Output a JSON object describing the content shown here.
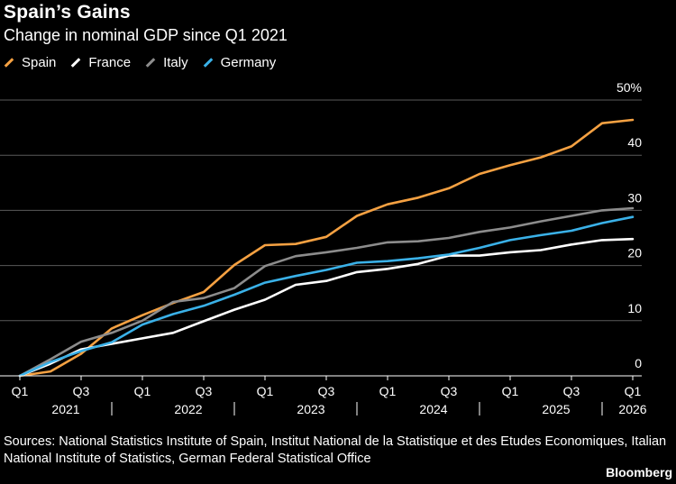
{
  "header": {
    "title": "Spain’s Gains",
    "subtitle": "Change in nominal GDP since Q1 2021"
  },
  "chart_data": {
    "type": "line",
    "title": "Spain’s Gains",
    "subtitle": "Change in nominal GDP since Q1 2021",
    "x": [
      "Q1 2021",
      "Q2 2021",
      "Q3 2021",
      "Q4 2021",
      "Q1 2022",
      "Q2 2022",
      "Q3 2022",
      "Q4 2022",
      "Q1 2023",
      "Q2 2023",
      "Q3 2023",
      "Q4 2023",
      "Q1 2024",
      "Q2 2024",
      "Q3 2024",
      "Q4 2024",
      "Q1 2025",
      "Q2 2025",
      "Q3 2025",
      "Q4 2025",
      "Q1 2026"
    ],
    "x_tick_labels": [
      "Q1",
      "Q3",
      "Q1",
      "Q3",
      "Q1",
      "Q3",
      "Q1",
      "Q3",
      "Q1",
      "Q3",
      "Q1"
    ],
    "x_tick_indices": [
      0,
      2,
      4,
      6,
      8,
      10,
      12,
      14,
      16,
      18,
      20
    ],
    "year_labels": [
      {
        "label": "2021",
        "index": 1.5
      },
      {
        "label": "2022",
        "index": 5.5
      },
      {
        "label": "2023",
        "index": 9.5
      },
      {
        "label": "2024",
        "index": 13.5
      },
      {
        "label": "2025",
        "index": 17.5
      },
      {
        "label": "2026",
        "index": 20
      }
    ],
    "year_separators": [
      3,
      7,
      11,
      15,
      19
    ],
    "y_ticks": [
      0,
      10,
      20,
      30,
      40,
      50
    ],
    "y_tick_labels": [
      "0",
      "10",
      "20",
      "30",
      "40",
      "50%"
    ],
    "ylim": [
      0,
      50
    ],
    "series": [
      {
        "name": "Spain",
        "color": "#f5a142",
        "values": [
          0,
          0.8,
          4,
          8.6,
          11,
          13.2,
          15.2,
          20.1,
          23.7,
          23.9,
          25.2,
          29,
          31.1,
          32.3,
          34,
          36.6,
          38.2,
          39.6,
          41.6,
          45.8,
          46.4
        ]
      },
      {
        "name": "France",
        "color": "#ffffff",
        "values": [
          0,
          2.2,
          4.8,
          5.8,
          6.8,
          7.8,
          9.9,
          12,
          13.8,
          16.5,
          17.2,
          18.8,
          19.4,
          20.3,
          21.8,
          21.8,
          22.4,
          22.8,
          23.8,
          24.6,
          24.8
        ]
      },
      {
        "name": "Italy",
        "color": "#8c8c8c",
        "values": [
          0,
          3,
          6.2,
          7.8,
          10,
          13.4,
          14.1,
          15.9,
          19.9,
          21.7,
          22.4,
          23.2,
          24.2,
          24.4,
          25,
          26.1,
          26.9,
          28,
          29,
          30,
          30.4
        ]
      },
      {
        "name": "Germany",
        "color": "#3ab1e8",
        "values": [
          0,
          2.5,
          4.5,
          6.1,
          9.3,
          11.2,
          12.7,
          14.7,
          16.9,
          18.1,
          19.2,
          20.5,
          20.8,
          21.3,
          22,
          23.2,
          24.6,
          25.5,
          26.3,
          27.7,
          28.8
        ]
      }
    ],
    "legend_position": "top-left",
    "grid": true
  },
  "footer": {
    "sources": "Sources: National Statistics Institute of Spain, Institut National de la Statistique et des Etudes Economiques, Italian National Institute of Statistics, German Federal Statistical Office",
    "brand": "Bloomberg"
  }
}
